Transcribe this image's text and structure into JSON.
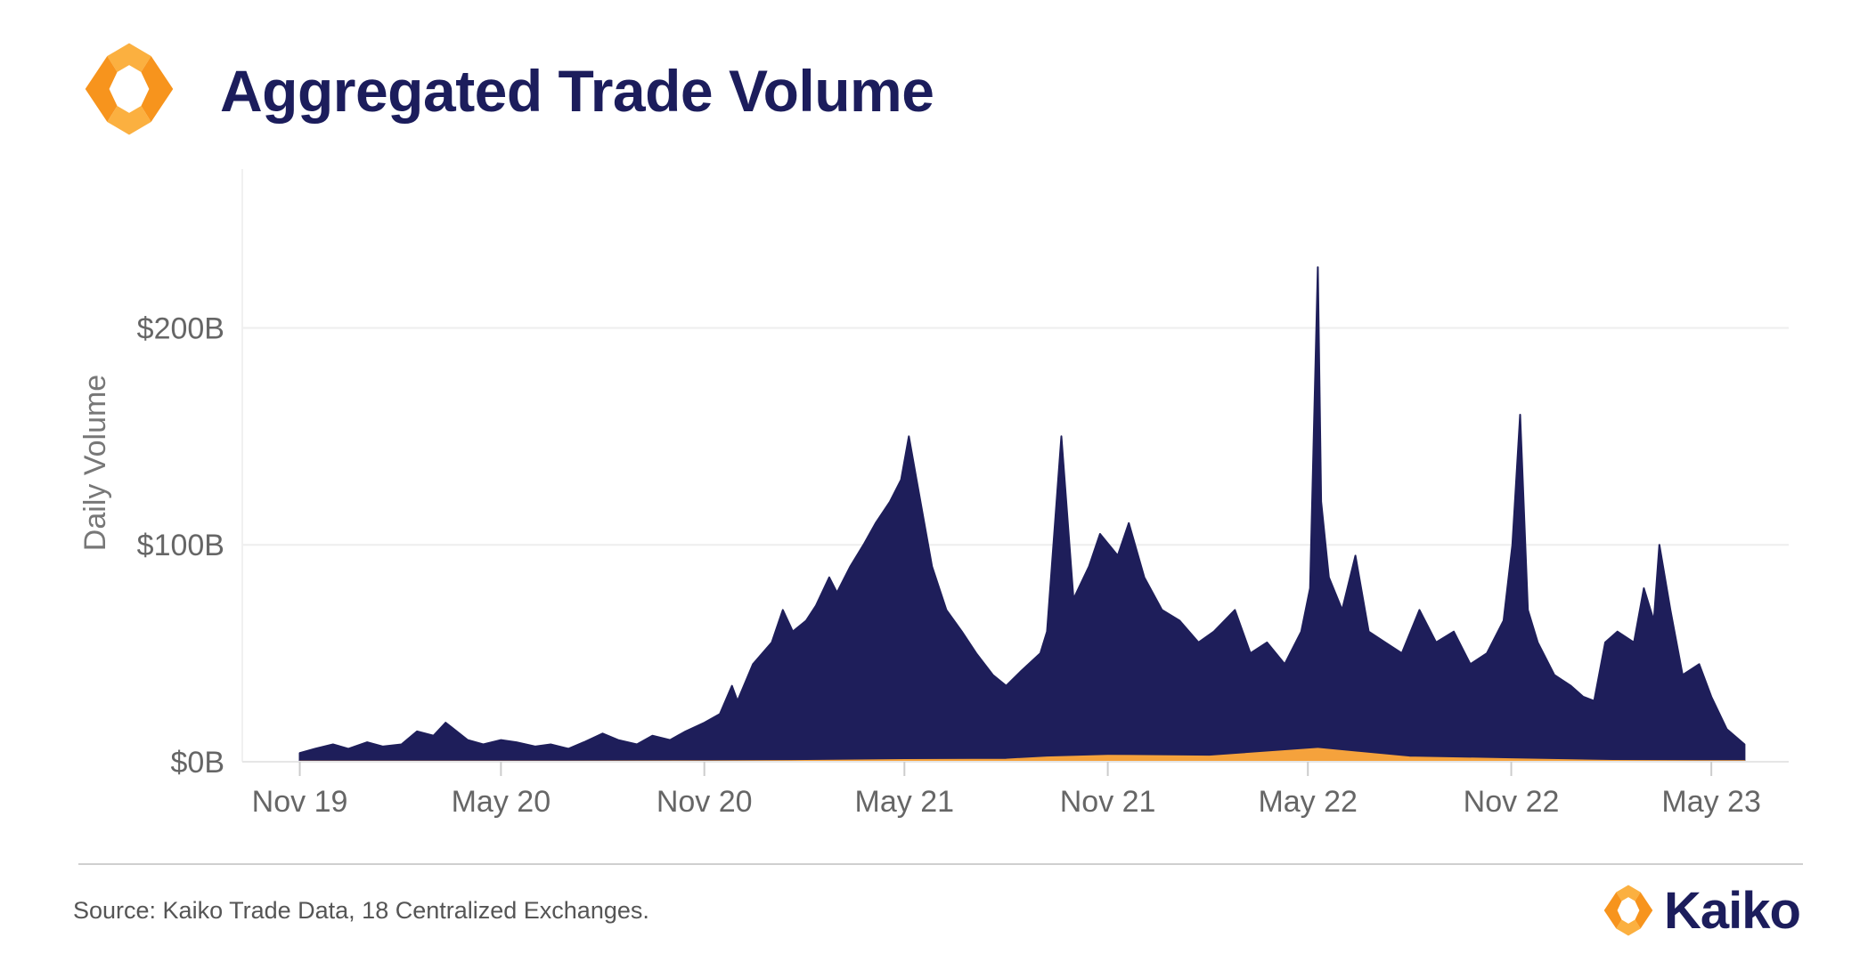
{
  "header": {
    "title": "Aggregated Trade Volume",
    "logo_icon": "kaiko-logo-icon"
  },
  "footer": {
    "source": "Source: Kaiko Trade Data, 18 Centralized Exchanges.",
    "brand": "Kaiko",
    "brand_icon": "kaiko-logo-icon"
  },
  "colors": {
    "primary_series": "#1e1e5a",
    "secondary_series": "#f5a23c",
    "title": "#1c1d5c",
    "logo_orange": "#f7941d",
    "logo_light": "#fbb040",
    "grid": "#eeeeee",
    "tick_text": "#666666"
  },
  "chart_data": {
    "type": "area",
    "ylabel": "Daily Volume",
    "xlabel": "",
    "y_ticks": [
      {
        "value": 0,
        "label": "$0B"
      },
      {
        "value": 100,
        "label": "$100B"
      },
      {
        "value": 200,
        "label": "$200B"
      }
    ],
    "x_ticks": [
      {
        "date": "2019-11-01",
        "label": "Nov 19"
      },
      {
        "date": "2020-05-01",
        "label": "May 20"
      },
      {
        "date": "2020-11-01",
        "label": "Nov 20"
      },
      {
        "date": "2021-05-01",
        "label": "May 21"
      },
      {
        "date": "2021-11-01",
        "label": "Nov 21"
      },
      {
        "date": "2022-05-01",
        "label": "May 22"
      },
      {
        "date": "2022-11-01",
        "label": "Nov 22"
      },
      {
        "date": "2023-05-01",
        "label": "May 23"
      }
    ],
    "ylim": [
      0,
      265
    ],
    "xlim": [
      "2019-09-10",
      "2023-07-10"
    ],
    "grid": true,
    "legend": "none",
    "series": [
      {
        "color": "#1e1e5a",
        "x": [
          "2019-11-01",
          "2019-11-15",
          "2019-12-01",
          "2019-12-15",
          "2020-01-01",
          "2020-01-15",
          "2020-02-01",
          "2020-02-15",
          "2020-03-01",
          "2020-03-12",
          "2020-04-01",
          "2020-04-15",
          "2020-05-01",
          "2020-05-15",
          "2020-06-01",
          "2020-06-15",
          "2020-07-01",
          "2020-07-15",
          "2020-08-01",
          "2020-08-15",
          "2020-09-01",
          "2020-09-15",
          "2020-10-01",
          "2020-10-15",
          "2020-11-01",
          "2020-11-15",
          "2020-11-26",
          "2020-12-01",
          "2020-12-15",
          "2021-01-01",
          "2021-01-11",
          "2021-01-20",
          "2021-02-01",
          "2021-02-10",
          "2021-02-22",
          "2021-03-01",
          "2021-03-13",
          "2021-03-25",
          "2021-04-05",
          "2021-04-18",
          "2021-04-28",
          "2021-05-05",
          "2021-05-12",
          "2021-05-19",
          "2021-05-26",
          "2021-06-08",
          "2021-06-22",
          "2021-07-05",
          "2021-07-20",
          "2021-08-01",
          "2021-08-15",
          "2021-09-01",
          "2021-09-07",
          "2021-09-20",
          "2021-10-01",
          "2021-10-15",
          "2021-10-25",
          "2021-11-10",
          "2021-11-20",
          "2021-12-04",
          "2021-12-20",
          "2022-01-05",
          "2022-01-22",
          "2022-02-05",
          "2022-02-24",
          "2022-03-10",
          "2022-03-25",
          "2022-04-10",
          "2022-04-25",
          "2022-05-03",
          "2022-05-10",
          "2022-05-13",
          "2022-05-20",
          "2022-06-01",
          "2022-06-13",
          "2022-06-25",
          "2022-07-10",
          "2022-07-25",
          "2022-08-10",
          "2022-08-25",
          "2022-09-10",
          "2022-09-25",
          "2022-10-10",
          "2022-10-25",
          "2022-11-02",
          "2022-11-09",
          "2022-11-16",
          "2022-11-25",
          "2022-12-10",
          "2022-12-25",
          "2023-01-05",
          "2023-01-15",
          "2023-01-25",
          "2023-02-05",
          "2023-02-20",
          "2023-03-01",
          "2023-03-10",
          "2023-03-15",
          "2023-03-25",
          "2023-04-05",
          "2023-04-20",
          "2023-05-01",
          "2023-05-15",
          "2023-05-31"
        ],
        "values": [
          4,
          6,
          8,
          6,
          9,
          7,
          8,
          14,
          12,
          18,
          10,
          8,
          10,
          9,
          7,
          8,
          6,
          9,
          13,
          10,
          8,
          12,
          10,
          14,
          18,
          22,
          35,
          28,
          45,
          55,
          70,
          60,
          65,
          72,
          85,
          78,
          90,
          100,
          110,
          120,
          130,
          150,
          130,
          110,
          90,
          70,
          60,
          50,
          40,
          35,
          42,
          50,
          60,
          150,
          75,
          90,
          105,
          95,
          110,
          85,
          70,
          65,
          55,
          60,
          70,
          50,
          55,
          45,
          60,
          80,
          228,
          120,
          85,
          70,
          95,
          60,
          55,
          50,
          70,
          55,
          60,
          45,
          50,
          65,
          100,
          160,
          70,
          55,
          40,
          35,
          30,
          28,
          55,
          60,
          55,
          80,
          65,
          100,
          70,
          40,
          45,
          30,
          15,
          8
        ]
      },
      {
        "color": "#f5a23c",
        "x": [
          "2019-11-01",
          "2020-05-01",
          "2020-11-01",
          "2021-02-01",
          "2021-05-01",
          "2021-08-01",
          "2021-09-07",
          "2021-11-01",
          "2022-02-01",
          "2022-05-10",
          "2022-08-01",
          "2022-11-01",
          "2023-02-01",
          "2023-05-31"
        ],
        "values": [
          0.1,
          0.1,
          0.2,
          0.4,
          0.8,
          1.0,
          2.0,
          2.8,
          2.4,
          6.0,
          2.0,
          1.2,
          0.4,
          0.3
        ]
      }
    ]
  }
}
